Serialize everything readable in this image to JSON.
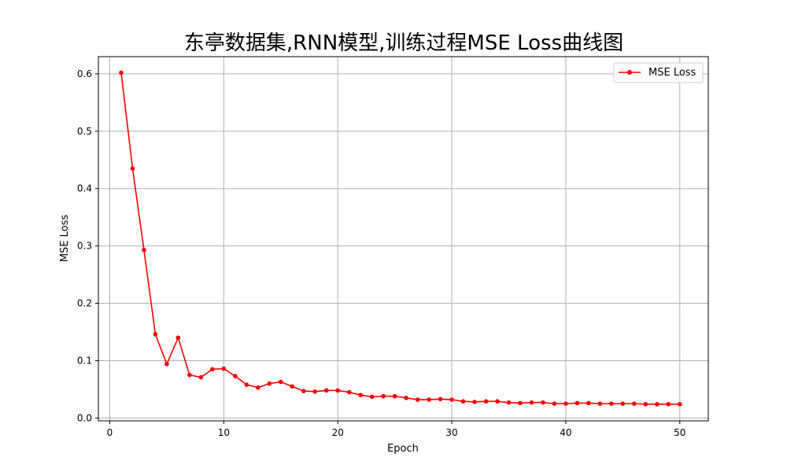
{
  "chart_data": {
    "type": "line",
    "title": "东亭数据集,RNN模型,训练过程MSE Loss曲线图",
    "xlabel": "Epoch",
    "ylabel": "MSE Loss",
    "xlim": [
      -1,
      52.5
    ],
    "ylim": [
      -0.005,
      0.63
    ],
    "xticks": [
      0,
      10,
      20,
      30,
      40,
      50
    ],
    "yticks": [
      0.0,
      0.1,
      0.2,
      0.3,
      0.4,
      0.5,
      0.6
    ],
    "ytick_labels": [
      "0.0",
      "0.1",
      "0.2",
      "0.3",
      "0.4",
      "0.5",
      "0.6"
    ],
    "xtick_labels": [
      "0",
      "10",
      "20",
      "30",
      "40",
      "50"
    ],
    "grid": true,
    "legend": "top-right",
    "series": [
      {
        "name": "MSE Loss",
        "color": "#ff0000",
        "marker": "circle",
        "x": [
          1,
          2,
          3,
          4,
          5,
          6,
          7,
          8,
          9,
          10,
          11,
          12,
          13,
          14,
          15,
          16,
          17,
          18,
          19,
          20,
          21,
          22,
          23,
          24,
          25,
          26,
          27,
          28,
          29,
          30,
          31,
          32,
          33,
          34,
          35,
          36,
          37,
          38,
          39,
          40,
          41,
          42,
          43,
          44,
          45,
          46,
          47,
          48,
          49,
          50
        ],
        "values": [
          0.602,
          0.435,
          0.293,
          0.146,
          0.094,
          0.14,
          0.075,
          0.071,
          0.085,
          0.086,
          0.073,
          0.058,
          0.053,
          0.06,
          0.063,
          0.055,
          0.047,
          0.046,
          0.048,
          0.048,
          0.045,
          0.04,
          0.037,
          0.038,
          0.038,
          0.035,
          0.032,
          0.032,
          0.033,
          0.032,
          0.029,
          0.028,
          0.029,
          0.029,
          0.027,
          0.026,
          0.027,
          0.027,
          0.025,
          0.025,
          0.026,
          0.026,
          0.025,
          0.025,
          0.025,
          0.025,
          0.024,
          0.024,
          0.024,
          0.024
        ]
      }
    ]
  }
}
